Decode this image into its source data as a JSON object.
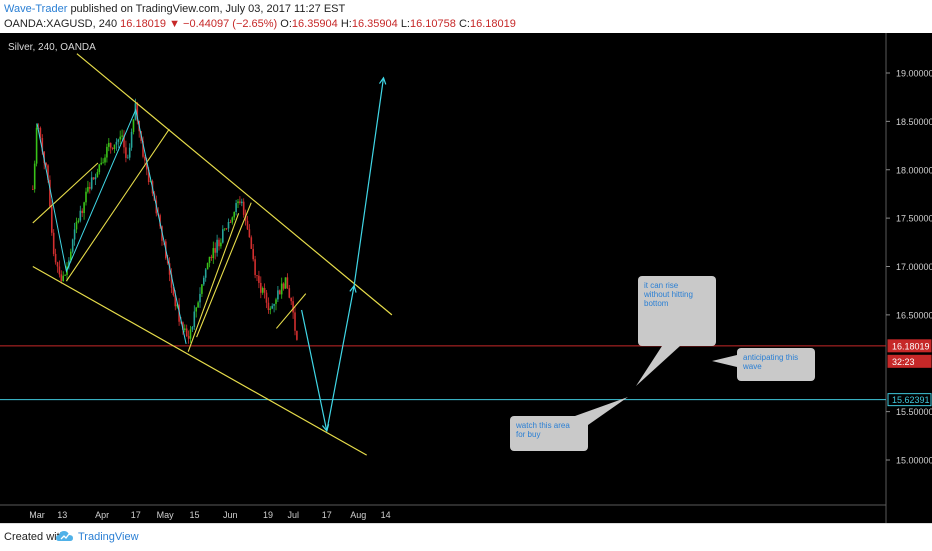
{
  "header": {
    "author": "Wave-Trader",
    "published": "published on TradingView.com, July 03, 2017 11:27 EST",
    "symbol_line": "OANDA:XAGUSD, 240",
    "change": "16.18019 ▼ −0.44097 (−2.65%)",
    "o_label": "O:",
    "o_value": "16.35904",
    "h_label": "H:",
    "h_value": "16.35904",
    "l_label": "L:",
    "l_value": "16.10758",
    "c_label": "C:",
    "c_value": "16.18019"
  },
  "footer": {
    "created": "Created with",
    "brand": "TradingView"
  },
  "chart_data": {
    "type": "line",
    "title": "Silver, 240, OANDA",
    "colors": {
      "background": "#000000",
      "up": "#26a69a",
      "up_alt": "#39c219",
      "down": "#d32f2f",
      "trendline": "#e6dc4a",
      "projection": "#40d7e6",
      "last_price_line": "#c62828",
      "level_line": "#40c8dc"
    },
    "y_axis": {
      "ylim": [
        14.55,
        19.3
      ],
      "ticks": [
        "19.00000",
        "18.50000",
        "18.00000",
        "17.50000",
        "17.00000",
        "16.50000",
        "15.50000",
        "15.00000"
      ],
      "tick_values": [
        19.0,
        18.5,
        18.0,
        17.5,
        17.0,
        16.5,
        15.5,
        15.0
      ]
    },
    "x_axis": {
      "ticks": [
        "Mar",
        "13",
        "Apr",
        "17",
        "May",
        "15",
        "Jun",
        "19",
        "Jul",
        "17",
        "Aug",
        "14"
      ]
    },
    "price_path": [
      {
        "t": "Feb 27",
        "y": 17.8
      },
      {
        "t": "Mar 1",
        "y": 18.45
      },
      {
        "t": "Mar 3",
        "y": 18.3
      },
      {
        "t": "Mar 6",
        "y": 17.9
      },
      {
        "t": "Mar 9",
        "y": 17.15
      },
      {
        "t": "Mar 13",
        "y": 16.85
      },
      {
        "t": "Mar 15",
        "y": 16.95
      },
      {
        "t": "Mar 20",
        "y": 17.45
      },
      {
        "t": "Mar 27",
        "y": 17.9
      },
      {
        "t": "Apr 3",
        "y": 18.2
      },
      {
        "t": "Apr 10",
        "y": 18.35
      },
      {
        "t": "Apr 13",
        "y": 18.05
      },
      {
        "t": "Apr 17",
        "y": 18.65
      },
      {
        "t": "Apr 21",
        "y": 18.1
      },
      {
        "t": "Apr 28",
        "y": 17.5
      },
      {
        "t": "May 4",
        "y": 16.8
      },
      {
        "t": "May 9",
        "y": 16.35
      },
      {
        "t": "May 12",
        "y": 16.25
      },
      {
        "t": "May 16",
        "y": 16.6
      },
      {
        "t": "May 22",
        "y": 17.1
      },
      {
        "t": "May 29",
        "y": 17.35
      },
      {
        "t": "Jun 2",
        "y": 17.55
      },
      {
        "t": "Jun 6",
        "y": 17.7
      },
      {
        "t": "Jun 9",
        "y": 17.45
      },
      {
        "t": "Jun 13",
        "y": 16.95
      },
      {
        "t": "Jun 16",
        "y": 16.75
      },
      {
        "t": "Jun 20",
        "y": 16.55
      },
      {
        "t": "Jun 23",
        "y": 16.7
      },
      {
        "t": "Jun 27",
        "y": 16.85
      },
      {
        "t": "Jun 30",
        "y": 16.65
      },
      {
        "t": "Jul 3",
        "y": 16.18
      }
    ],
    "price_labels": [
      {
        "text": "16.18019",
        "value": 16.18019,
        "color": "#c62828"
      },
      {
        "text": "32:23",
        "value": 16.02,
        "color": "#c62828"
      },
      {
        "text": "15.62391",
        "value": 15.62391,
        "color": "#40c8dc"
      }
    ],
    "trendlines": [
      {
        "name": "channel-top",
        "from": {
          "t": "Mar 20",
          "y": 19.2
        },
        "to": {
          "t": "Aug 17",
          "y": 16.5
        }
      },
      {
        "name": "channel-bottom",
        "from": {
          "t": "Feb 27",
          "y": 17.0
        },
        "to": {
          "t": "Aug 5",
          "y": 15.05
        }
      }
    ],
    "annotations": [
      {
        "text": "it can rise\nwithout hitting\nbottom"
      },
      {
        "text": "anticipating this\nwave"
      },
      {
        "text": "watch this area\nfor buy"
      }
    ]
  }
}
